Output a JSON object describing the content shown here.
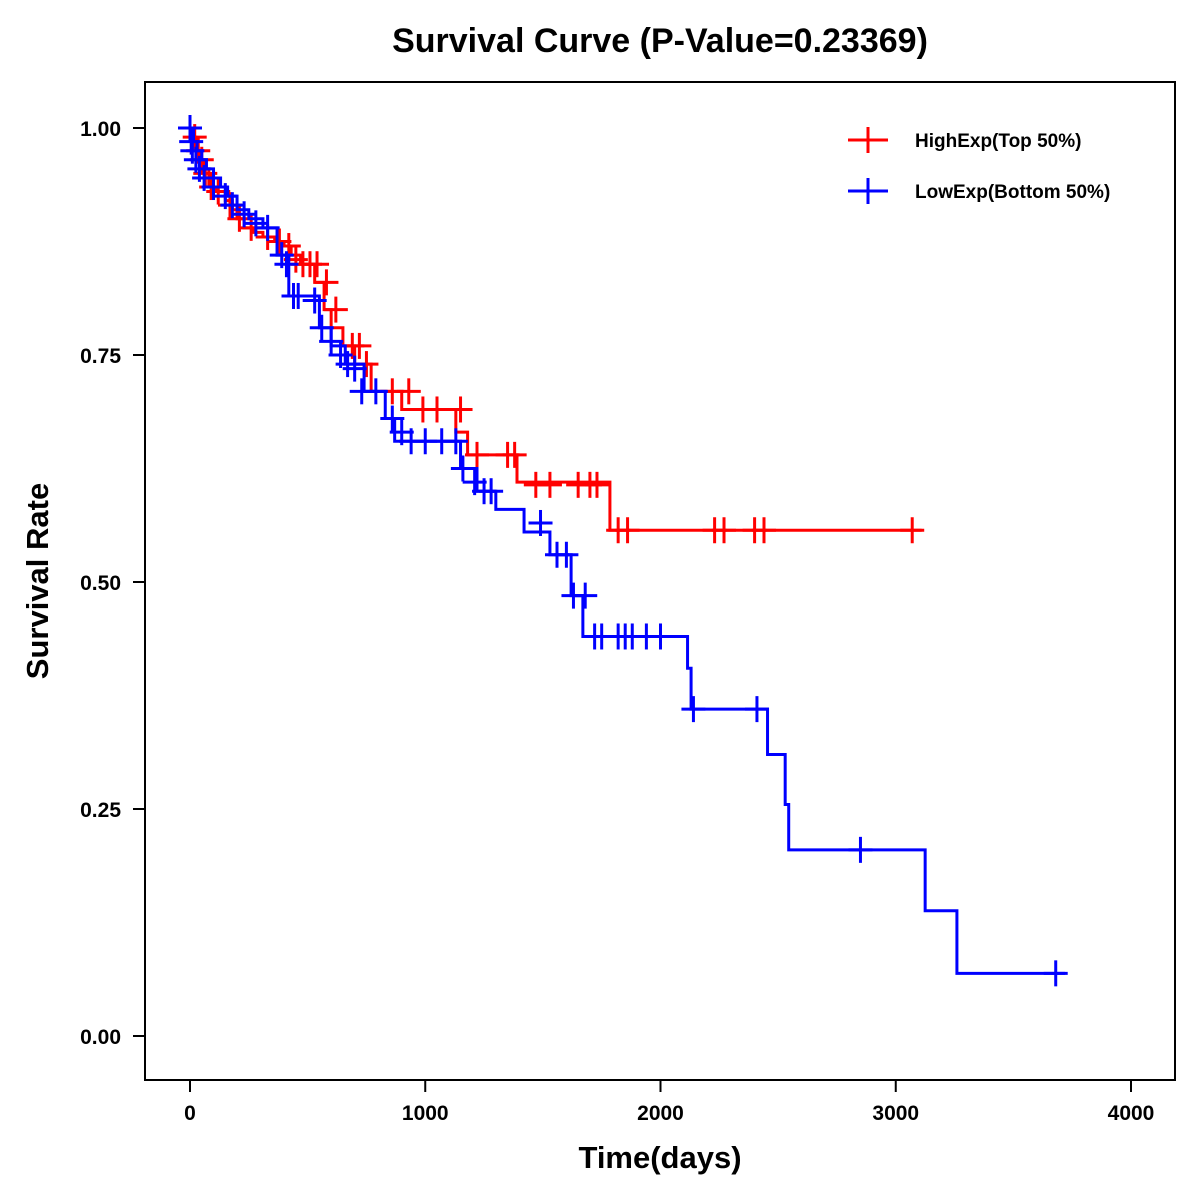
{
  "chart_data": {
    "type": "line",
    "subtype": "kaplan-meier-step",
    "title": "Survival Curve (P-Value=0.23369)",
    "xlabel": "Time(days)",
    "ylabel": "Survival Rate",
    "xlim": [
      -190,
      4190
    ],
    "ylim": [
      -0.05,
      1.05
    ],
    "xticks": [
      0,
      1000,
      2000,
      3000,
      4000
    ],
    "xtick_labels": [
      "0",
      "1000",
      "2000",
      "3000",
      "4000"
    ],
    "yticks": [
      0,
      0.25,
      0.5,
      0.75,
      1.0
    ],
    "ytick_labels": [
      "0.00",
      "0.25",
      "0.50",
      "0.75",
      "1.00"
    ],
    "grid": false,
    "legend_position": "top-right",
    "censor_marker": "+",
    "series": [
      {
        "name": "HighExp(Top 50%)",
        "color": "#ff0000",
        "steps": [
          [
            0,
            1.0
          ],
          [
            10,
            0.99
          ],
          [
            25,
            0.975
          ],
          [
            40,
            0.965
          ],
          [
            60,
            0.955
          ],
          [
            80,
            0.935
          ],
          [
            110,
            0.93
          ],
          [
            150,
            0.92
          ],
          [
            180,
            0.91
          ],
          [
            200,
            0.9
          ],
          [
            230,
            0.89
          ],
          [
            270,
            0.885
          ],
          [
            310,
            0.88
          ],
          [
            360,
            0.875
          ],
          [
            400,
            0.87
          ],
          [
            430,
            0.86
          ],
          [
            470,
            0.85
          ],
          [
            530,
            0.83
          ],
          [
            570,
            0.8
          ],
          [
            600,
            0.78
          ],
          [
            650,
            0.76
          ],
          [
            700,
            0.74
          ],
          [
            770,
            0.71
          ],
          [
            900,
            0.69
          ],
          [
            1130,
            0.665
          ],
          [
            1180,
            0.64
          ],
          [
            1390,
            0.61
          ],
          [
            1785,
            0.557
          ]
        ],
        "end_time": 3110,
        "censored": [
          [
            20,
            0.99
          ],
          [
            35,
            0.975
          ],
          [
            50,
            0.965
          ],
          [
            65,
            0.95
          ],
          [
            90,
            0.935
          ],
          [
            120,
            0.93
          ],
          [
            170,
            0.915
          ],
          [
            210,
            0.9
          ],
          [
            260,
            0.89
          ],
          [
            330,
            0.88
          ],
          [
            380,
            0.875
          ],
          [
            420,
            0.87
          ],
          [
            450,
            0.855
          ],
          [
            480,
            0.85
          ],
          [
            510,
            0.85
          ],
          [
            540,
            0.85
          ],
          [
            580,
            0.83
          ],
          [
            620,
            0.8
          ],
          [
            690,
            0.76
          ],
          [
            720,
            0.76
          ],
          [
            750,
            0.74
          ],
          [
            860,
            0.71
          ],
          [
            930,
            0.71
          ],
          [
            990,
            0.69
          ],
          [
            1050,
            0.69
          ],
          [
            1150,
            0.69
          ],
          [
            1220,
            0.64
          ],
          [
            1350,
            0.64
          ],
          [
            1380,
            0.64
          ],
          [
            1470,
            0.607
          ],
          [
            1530,
            0.607
          ],
          [
            1650,
            0.607
          ],
          [
            1700,
            0.607
          ],
          [
            1730,
            0.607
          ],
          [
            1820,
            0.557
          ],
          [
            1860,
            0.557
          ],
          [
            2230,
            0.557
          ],
          [
            2270,
            0.557
          ],
          [
            2400,
            0.557
          ],
          [
            2440,
            0.557
          ],
          [
            3070,
            0.557
          ]
        ]
      },
      {
        "name": "LowExp(Bottom 50%)",
        "color": "#0000ff",
        "steps": [
          [
            0,
            1.0
          ],
          [
            15,
            0.985
          ],
          [
            30,
            0.975
          ],
          [
            50,
            0.965
          ],
          [
            70,
            0.955
          ],
          [
            100,
            0.945
          ],
          [
            130,
            0.935
          ],
          [
            160,
            0.925
          ],
          [
            200,
            0.91
          ],
          [
            250,
            0.9
          ],
          [
            310,
            0.89
          ],
          [
            370,
            0.86
          ],
          [
            420,
            0.815
          ],
          [
            550,
            0.78
          ],
          [
            600,
            0.76
          ],
          [
            660,
            0.74
          ],
          [
            740,
            0.71
          ],
          [
            830,
            0.68
          ],
          [
            870,
            0.655
          ],
          [
            1150,
            0.625
          ],
          [
            1220,
            0.6
          ],
          [
            1300,
            0.58
          ],
          [
            1420,
            0.555
          ],
          [
            1530,
            0.53
          ],
          [
            1620,
            0.485
          ],
          [
            1670,
            0.44
          ],
          [
            2115,
            0.405
          ],
          [
            2130,
            0.36
          ],
          [
            2455,
            0.31
          ],
          [
            2530,
            0.255
          ],
          [
            2545,
            0.205
          ],
          [
            3125,
            0.138
          ],
          [
            3260,
            0.069
          ]
        ],
        "end_time": 3720,
        "censored": [
          [
            0,
            1.0
          ],
          [
            5,
            0.985
          ],
          [
            10,
            0.975
          ],
          [
            25,
            0.965
          ],
          [
            40,
            0.955
          ],
          [
            60,
            0.945
          ],
          [
            100,
            0.935
          ],
          [
            150,
            0.925
          ],
          [
            180,
            0.915
          ],
          [
            230,
            0.905
          ],
          [
            280,
            0.895
          ],
          [
            330,
            0.89
          ],
          [
            390,
            0.86
          ],
          [
            410,
            0.85
          ],
          [
            440,
            0.815
          ],
          [
            460,
            0.815
          ],
          [
            530,
            0.81
          ],
          [
            560,
            0.78
          ],
          [
            600,
            0.765
          ],
          [
            640,
            0.75
          ],
          [
            670,
            0.74
          ],
          [
            700,
            0.735
          ],
          [
            730,
            0.71
          ],
          [
            790,
            0.71
          ],
          [
            860,
            0.68
          ],
          [
            900,
            0.665
          ],
          [
            940,
            0.655
          ],
          [
            1000,
            0.655
          ],
          [
            1070,
            0.655
          ],
          [
            1130,
            0.655
          ],
          [
            1160,
            0.625
          ],
          [
            1210,
            0.61
          ],
          [
            1250,
            0.6
          ],
          [
            1280,
            0.6
          ],
          [
            1490,
            0.565
          ],
          [
            1560,
            0.53
          ],
          [
            1600,
            0.53
          ],
          [
            1630,
            0.485
          ],
          [
            1680,
            0.485
          ],
          [
            1720,
            0.44
          ],
          [
            1750,
            0.44
          ],
          [
            1820,
            0.44
          ],
          [
            1850,
            0.44
          ],
          [
            1880,
            0.44
          ],
          [
            1940,
            0.44
          ],
          [
            2000,
            0.44
          ],
          [
            2140,
            0.36
          ],
          [
            2410,
            0.36
          ],
          [
            2850,
            0.205
          ],
          [
            3680,
            0.069
          ]
        ]
      }
    ]
  }
}
